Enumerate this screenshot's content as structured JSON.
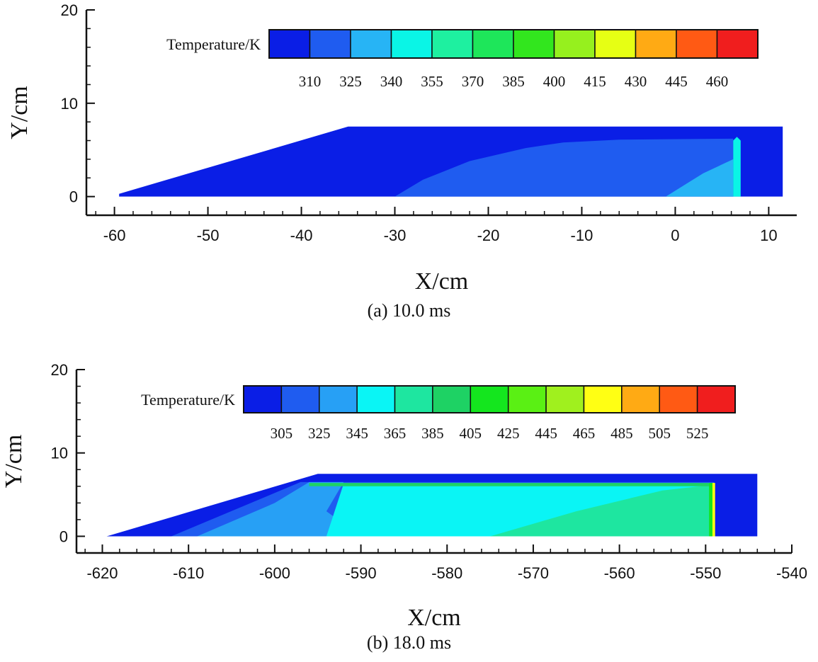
{
  "chart_data": [
    {
      "type": "heatmap",
      "caption": "(a) 10.0 ms",
      "xlabel": "X/cm",
      "ylabel": "Y/cm",
      "xlim": [
        -63,
        13
      ],
      "ylim": [
        -2,
        20
      ],
      "xticks": [
        -60,
        -50,
        -40,
        -30,
        -20,
        -10,
        0,
        10
      ],
      "yticks": [
        0,
        10,
        20
      ],
      "colorbar": {
        "title": "Temperature/K",
        "levels": [
          "310",
          "325",
          "340",
          "355",
          "370",
          "385",
          "400",
          "415",
          "430",
          "445",
          "460"
        ],
        "colors": [
          "#0a1ee6",
          "#1f5cf0",
          "#27b4f5",
          "#0af5e6",
          "#1ef0a0",
          "#1ee65a",
          "#32e61e",
          "#96f01e",
          "#e6ff14",
          "#ffaa14",
          "#ff5a14",
          "#f01e1e"
        ]
      },
      "domain": {
        "x_start": -59.5,
        "ramp_top_x": -35,
        "x_end": 11.5,
        "height": 7.5
      },
      "regions": [
        {
          "level": 0,
          "polygon": [
            [
              -59.5,
              0.3
            ],
            [
              -35,
              7.5
            ],
            [
              11.5,
              7.5
            ],
            [
              11.5,
              0
            ],
            [
              -59.5,
              0
            ]
          ]
        },
        {
          "level": 1,
          "polygon": [
            [
              -30,
              0
            ],
            [
              -27,
              1.8
            ],
            [
              -22,
              3.8
            ],
            [
              -16,
              5.2
            ],
            [
              -12,
              5.8
            ],
            [
              -6,
              6.1
            ],
            [
              6.2,
              6.2
            ],
            [
              6.2,
              0
            ]
          ]
        },
        {
          "level": 2,
          "polygon": [
            [
              -1,
              0
            ],
            [
              3,
              2.5
            ],
            [
              6.2,
              4.0
            ],
            [
              6.2,
              0
            ]
          ]
        },
        {
          "level": 3,
          "polygon": [
            [
              6.2,
              0
            ],
            [
              6.2,
              6.0
            ],
            [
              6.6,
              6.4
            ],
            [
              7.0,
              6.0
            ],
            [
              7.0,
              0
            ]
          ]
        }
      ]
    },
    {
      "type": "heatmap",
      "caption": "(b) 18.0 ms",
      "xlabel": "X/cm",
      "ylabel": "Y/cm",
      "xlim": [
        -623,
        -540
      ],
      "ylim": [
        -2,
        20
      ],
      "xticks": [
        -620,
        -610,
        -600,
        -590,
        -580,
        -570,
        -560,
        -550,
        -540
      ],
      "yticks": [
        0,
        10,
        20
      ],
      "colorbar": {
        "title": "Temperature/K",
        "levels": [
          "305",
          "325",
          "345",
          "365",
          "385",
          "405",
          "425",
          "445",
          "465",
          "485",
          "505",
          "525"
        ],
        "colors": [
          "#0a1ee6",
          "#1f5cf0",
          "#27a0f5",
          "#0af5f5",
          "#1ee6a0",
          "#1ed264",
          "#14e61e",
          "#5af014",
          "#a0f01e",
          "#ffff14",
          "#ffaa14",
          "#ff5a14",
          "#f01e1e"
        ]
      },
      "domain": {
        "x_start": -619.5,
        "ramp_top_x": -595,
        "x_end": -544,
        "height": 7.5
      },
      "regions": [
        {
          "level": 0,
          "polygon": [
            [
              -619.5,
              0
            ],
            [
              -595,
              7.5
            ],
            [
              -544,
              7.5
            ],
            [
              -544,
              0
            ]
          ]
        },
        {
          "level": 1,
          "polygon": [
            [
              -612,
              0
            ],
            [
              -597,
              6.5
            ],
            [
              -549,
              6.5
            ],
            [
              -549,
              0
            ]
          ]
        },
        {
          "level": 2,
          "polygon": [
            [
              -609,
              0
            ],
            [
              -600,
              4.0
            ],
            [
              -596,
              6.5
            ],
            [
              -592,
              6.5
            ],
            [
              -594,
              3.0
            ],
            [
              -590,
              0
            ]
          ]
        },
        {
          "level": 3,
          "polygon": [
            [
              -594,
              0
            ],
            [
              -592,
              6.3
            ],
            [
              -549,
              6.3
            ],
            [
              -549,
              0
            ]
          ]
        },
        {
          "level": 4,
          "polygon": [
            [
              -575,
              0
            ],
            [
              -565,
              3.0
            ],
            [
              -555,
              5.5
            ],
            [
              -549,
              6.2
            ],
            [
              -549,
              0
            ]
          ]
        },
        {
          "level": 5,
          "polygon": [
            [
              -596,
              6.0
            ],
            [
              -549,
              6.0
            ],
            [
              -549,
              6.4
            ],
            [
              -596,
              6.4
            ]
          ]
        },
        {
          "level": 6,
          "polygon": [
            [
              -549.6,
              0
            ],
            [
              -549.6,
              6.4
            ],
            [
              -549.0,
              6.4
            ],
            [
              -549.0,
              0
            ]
          ]
        },
        {
          "level": 9,
          "polygon": [
            [
              -549.2,
              0
            ],
            [
              -549.2,
              6.4
            ],
            [
              -548.9,
              6.4
            ],
            [
              -548.9,
              0
            ]
          ]
        }
      ]
    }
  ]
}
